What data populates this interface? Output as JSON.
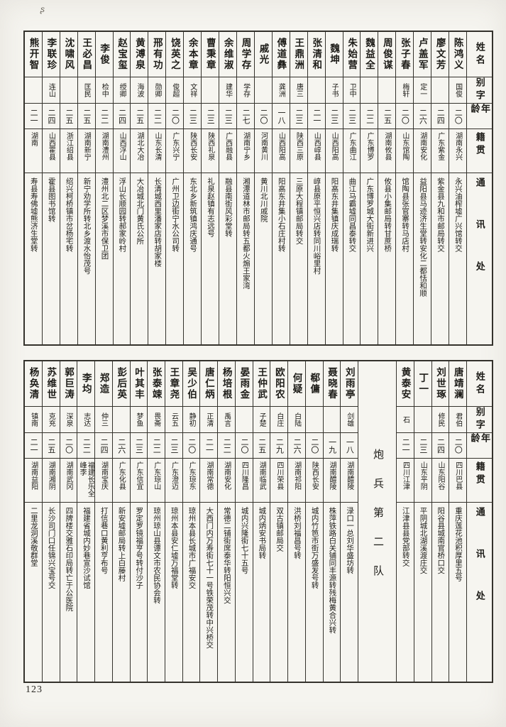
{
  "page": {
    "number": "123",
    "corner_mark": "ʂ"
  },
  "column_headers": {
    "name": "姓名",
    "zi": "别字",
    "age": "年龄",
    "native": "籍贯",
    "contact": "通讯处"
  },
  "tables": [
    {
      "columns": [
        {
          "name": "陈鸿义",
          "zi": "国俊",
          "age": "二〇",
          "native": "湖南永兴",
          "addr": "永兴油榨墟广兴馆转交"
        },
        {
          "name": "廖文芳",
          "zi": "",
          "age": "二四",
          "native": "广东紫金",
          "addr": "紫金县九和市邮局转交"
        },
        {
          "name": "卢盖军",
          "zi": "定一",
          "age": "二六",
          "native": "湖南安化",
          "addr": "益阳县马迹济生堂转安化二都恬和顺"
        },
        {
          "name": "张子春",
          "zi": "梅轩",
          "age": "二〇",
          "native": "山东馆陶",
          "addr": "馆陶县张官寨转马店村"
        },
        {
          "name": "周俊谋",
          "zi": "",
          "age": "二五",
          "native": "湖南攸县",
          "addr": "攸县小集邮局转甘蔗桥"
        },
        {
          "name": "魏益全",
          "zi": "",
          "age": "二二",
          "native": "广东博罗",
          "addr": "广东博罗城大街新进兴"
        },
        {
          "name": "朱始营",
          "zi": "卫中",
          "age": "二三",
          "native": "广东曲江",
          "addr": "曲江马霸墟同昌泰转交"
        },
        {
          "name": "魏坤",
          "zi": "子书",
          "age": "二三",
          "native": "山西阳高",
          "addr": "阳高东井集镇庆成瑞转"
        },
        {
          "name": "张清和",
          "zi": "",
          "age": "二一",
          "native": "山西崞县",
          "addr": "崞县原平恒兴店转同川峪里村"
        },
        {
          "name": "王鼎洲",
          "zi": "唐三",
          "age": "二三",
          "native": "陕西三原",
          "addr": "三原大程镇邮局转交"
        },
        {
          "name": "傅道彝",
          "zi": "龚洲",
          "age": "一八",
          "native": "山西阳高",
          "addr": "阳高东井集小石庄村转"
        },
        {
          "name": "戚光",
          "zi": "",
          "age": "二〇",
          "native": "河南黄川",
          "addr": "黄川北川戚院"
        },
        {
          "name": "周学存",
          "zi": "学存",
          "age": "二七",
          "native": "湖南宁乡",
          "addr": "湘潭道林市邮局转五都火煽王家湾"
        },
        {
          "name": "余维淑",
          "zi": "建华",
          "age": "二三",
          "native": "广西融县",
          "addr": "融县南街风彩堂转"
        },
        {
          "name": "曹秉章",
          "zi": "",
          "age": "二三",
          "native": "陕西礼泉",
          "addr": "礼泉赵镇有志远号"
        },
        {
          "name": "余本章",
          "zi": "文祥",
          "age": "二三",
          "native": "陕西长安",
          "addr": "东北乡新筑镇鸿庆通号"
        },
        {
          "name": "饶英之",
          "zi": "俊超",
          "age": "二〇",
          "native": "广东兴宁",
          "addr": "广州卫边街宁水公司转"
        },
        {
          "name": "邢有功",
          "zi": "勋卿",
          "age": "二二",
          "native": "山东长清",
          "addr": "长清城西里潘家店转胡家楼"
        },
        {
          "name": "黄溥泉",
          "zi": "海波",
          "age": "二五",
          "native": "湖北大冶",
          "addr": "大冶城北门黄氏公所"
        },
        {
          "name": "赵宝玺",
          "zi": "绶卿",
          "age": "二四",
          "native": "山西浮山",
          "addr": "浮山长顺园转郝家岭村"
        },
        {
          "name": "李俊",
          "zi": "检中",
          "age": "二二",
          "native": "湖南澧州",
          "addr": "澧州北二区梦溪市保卫团"
        },
        {
          "name": "王必昌",
          "zi": "匡民",
          "age": "二五",
          "native": "湖南新宁",
          "addr": "新宁劝学所转北乡渡水怡茂号"
        },
        {
          "name": "沈啸风",
          "zi": "",
          "age": "二五",
          "native": "浙江绍县",
          "addr": "绍兴柯桥镇市岔杨宅转"
        },
        {
          "name": "李联珍",
          "zi": "连山",
          "age": "二四",
          "native": "山西霍县",
          "addr": "霍县图书馆转"
        },
        {
          "name": "熊开智",
          "zi": "",
          "age": "二一",
          "native": "湖南",
          "addr": "寿县寿佛墟熊济生堂转"
        }
      ]
    },
    {
      "columns": [
        {
          "name": "唐靖澜",
          "zi": "君伯",
          "age": "二〇",
          "native": "四川巴县",
          "addr": "重庆莲花池积厚里五号"
        },
        {
          "name": "刘世琢",
          "zi": "修民",
          "age": "二四",
          "native": "山东阳谷",
          "addr": "阳谷县城南官桥口交"
        },
        {
          "name": "丁一",
          "zi": "",
          "age": "二三",
          "native": "山东平阴",
          "addr": "平阴城北湖溪渡庄交"
        },
        {
          "name": "黄泰安",
          "zi": "石",
          "age": "二一",
          "native": "四川江津",
          "addr": "江津县县党部转交"
        },
        {
          "divider": "炮兵第二队"
        },
        {
          "name": "刘雨亭",
          "zi": "剑雄",
          "age": "一八",
          "native": "湖南醴陵",
          "addr": "渌口一总刘华盛坊转"
        },
        {
          "name": "聂晓春",
          "zi": "",
          "age": "一九",
          "native": "湖南醴陵",
          "addr": "株萍铁路白关铺同丰源转残梅黄合兴转"
        },
        {
          "name": "郗傭",
          "zi": "",
          "age": "二〇",
          "native": "陕西长安",
          "addr": "城内竹笆市街万盛发号转"
        },
        {
          "name": "何疑",
          "zi": "白陆",
          "age": "二六",
          "native": "湖南祁阳",
          "addr": "洪桥刘福昌号转"
        },
        {
          "name": "欧阳农",
          "zi": "白庄",
          "age": "二九",
          "native": "四川荣县",
          "addr": "双古镇邮局交"
        },
        {
          "name": "王仲武",
          "zi": "子楚",
          "age": "二五",
          "native": "湖南临武",
          "addr": "城内炳安书局转"
        },
        {
          "name": "晏雨金",
          "zi": "",
          "age": "二〇",
          "native": "四川隆昌",
          "addr": "城内兴隆街七十五号"
        },
        {
          "name": "杨培根",
          "zi": "禹言",
          "age": "二二",
          "native": "湖南安化",
          "addr": "常德二铺街席泰华转阳恒兴交"
        },
        {
          "name": "唐仁炳",
          "zi": "正清",
          "age": "二一",
          "native": "湖南常德",
          "addr": "大西门内万寿街七十一号铁荣茂转中兴桥交"
        },
        {
          "name": "吴少伯",
          "zi": "静初",
          "age": "二〇",
          "native": "广东琼东",
          "addr": "琼州本县长城市广福安交"
        },
        {
          "name": "王章尧",
          "zi": "云五",
          "age": "二三",
          "native": "广东澄迈",
          "addr": "琼州本县安仁墟万福堂转"
        },
        {
          "name": "张泰竦",
          "zi": "畏斋",
          "age": "二二",
          "native": "广东琼山",
          "addr": "琼州琼山县谭文市农民协会转"
        },
        {
          "name": "叶其丰",
          "zi": "梦鱼",
          "age": "二三",
          "native": "广东信宜",
          "addr": "罗定罗镜福亨号转付沙子"
        },
        {
          "name": "彭后英",
          "zi": "",
          "age": "二六",
          "native": "广东化县",
          "addr": "新安墟邮局转上白藤村"
        },
        {
          "name": "郑造",
          "zi": "仲三",
          "age": "二四",
          "native": "湖南宝庆",
          "addr": "打信巷口黄利亨布号"
        },
        {
          "name": "李均",
          "zi": "志达",
          "age": "二二",
          "native": "福建长乐全峰李",
          "addr": "福建省城内妙巷宣沙试馆"
        },
        {
          "name": "郭巨涛",
          "zi": "深泉",
          "age": "二〇",
          "native": "湖南武冈",
          "addr": "四牌楼交雅石印局转亡于公医院"
        },
        {
          "name": "苏维世",
          "zi": "克充",
          "age": "二五",
          "native": "湖南湘阴",
          "addr": "长沙司门口任锦兴宝号交"
        },
        {
          "name": "杨奂清",
          "zi": "镇南",
          "age": "二一",
          "native": "湖南益阳",
          "addr": "二里龙洞溪敬群堂"
        }
      ]
    }
  ]
}
